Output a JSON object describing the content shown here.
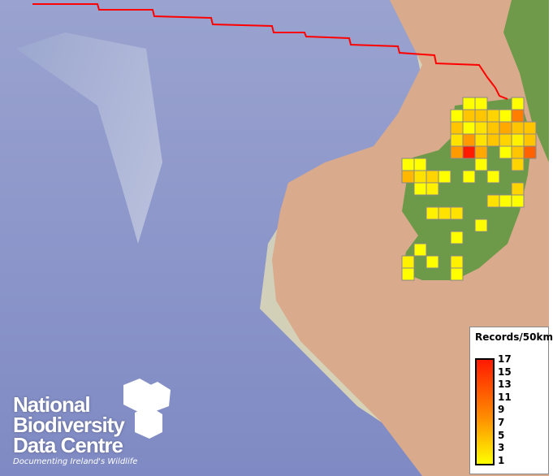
{
  "legend": {
    "title": "Records/50km",
    "ticks": [
      "17",
      "15",
      "13",
      "11",
      "9",
      "7",
      "5",
      "3",
      "1"
    ],
    "min": 1,
    "max": 17,
    "colors": {
      "low": "#ffff00",
      "mid": "#ff8c00",
      "high": "#ff1a00"
    }
  },
  "logo": {
    "line1": "National",
    "line2": "Biodiversity",
    "line3": "Data Centre",
    "tagline": "Documenting Ireland's Wildlife"
  },
  "boundary_color": "#ff0000",
  "grid_records": [
    {
      "row": 0,
      "col": 5,
      "value": 1
    },
    {
      "row": 0,
      "col": 6,
      "value": 1
    },
    {
      "row": 0,
      "col": 9,
      "value": 1
    },
    {
      "row": 1,
      "col": 4,
      "value": 1
    },
    {
      "row": 1,
      "col": 5,
      "value": 5
    },
    {
      "row": 1,
      "col": 6,
      "value": 5
    },
    {
      "row": 1,
      "col": 7,
      "value": 4
    },
    {
      "row": 1,
      "col": 8,
      "value": 1
    },
    {
      "row": 1,
      "col": 9,
      "value": 10
    },
    {
      "row": 2,
      "col": 4,
      "value": 5
    },
    {
      "row": 2,
      "col": 5,
      "value": 1
    },
    {
      "row": 2,
      "col": 6,
      "value": 3
    },
    {
      "row": 2,
      "col": 7,
      "value": 5
    },
    {
      "row": 2,
      "col": 8,
      "value": 7
    },
    {
      "row": 2,
      "col": 9,
      "value": 5
    },
    {
      "row": 2,
      "col": 10,
      "value": 5
    },
    {
      "row": 3,
      "col": 4,
      "value": 3
    },
    {
      "row": 3,
      "col": 5,
      "value": 8
    },
    {
      "row": 3,
      "col": 6,
      "value": 3
    },
    {
      "row": 3,
      "col": 7,
      "value": 5
    },
    {
      "row": 3,
      "col": 8,
      "value": 4
    },
    {
      "row": 3,
      "col": 9,
      "value": 2
    },
    {
      "row": 3,
      "col": 10,
      "value": 5
    },
    {
      "row": 4,
      "col": 4,
      "value": 8
    },
    {
      "row": 4,
      "col": 5,
      "value": 17
    },
    {
      "row": 4,
      "col": 6,
      "value": 7
    },
    {
      "row": 4,
      "col": 8,
      "value": 1
    },
    {
      "row": 4,
      "col": 9,
      "value": 5
    },
    {
      "row": 4,
      "col": 10,
      "value": 12
    },
    {
      "row": 5,
      "col": 0,
      "value": 1
    },
    {
      "row": 5,
      "col": 1,
      "value": 1
    },
    {
      "row": 5,
      "col": 6,
      "value": 1
    },
    {
      "row": 5,
      "col": 9,
      "value": 4
    },
    {
      "row": 6,
      "col": 0,
      "value": 6
    },
    {
      "row": 6,
      "col": 1,
      "value": 3
    },
    {
      "row": 6,
      "col": 2,
      "value": 4
    },
    {
      "row": 6,
      "col": 3,
      "value": 1
    },
    {
      "row": 6,
      "col": 5,
      "value": 1
    },
    {
      "row": 6,
      "col": 7,
      "value": 1
    },
    {
      "row": 7,
      "col": 1,
      "value": 1
    },
    {
      "row": 7,
      "col": 2,
      "value": 2
    },
    {
      "row": 7,
      "col": 9,
      "value": 4
    },
    {
      "row": 8,
      "col": 7,
      "value": 3
    },
    {
      "row": 8,
      "col": 8,
      "value": 1
    },
    {
      "row": 8,
      "col": 9,
      "value": 1
    },
    {
      "row": 9,
      "col": 2,
      "value": 2
    },
    {
      "row": 9,
      "col": 3,
      "value": 3
    },
    {
      "row": 9,
      "col": 4,
      "value": 3
    },
    {
      "row": 10,
      "col": 6,
      "value": 1
    },
    {
      "row": 11,
      "col": 4,
      "value": 1
    },
    {
      "row": 12,
      "col": 1,
      "value": 1
    },
    {
      "row": 13,
      "col": 0,
      "value": 2
    },
    {
      "row": 13,
      "col": 2,
      "value": 1
    },
    {
      "row": 13,
      "col": 4,
      "value": 2
    },
    {
      "row": 14,
      "col": 0,
      "value": 1
    },
    {
      "row": 14,
      "col": 4,
      "value": 1
    }
  ]
}
